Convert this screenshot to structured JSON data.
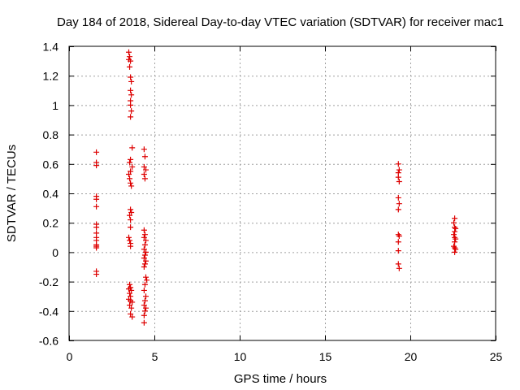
{
  "chart_data": {
    "type": "scatter",
    "title": "Day 184 of 2018, Sidereal Day-to-day VTEC variation (SDTVAR) for receiver mac1",
    "xlabel": "GPS time / hours",
    "ylabel": "SDTVAR / TECUs",
    "xlim": [
      0,
      25
    ],
    "ylim": [
      -0.6,
      1.4
    ],
    "xticks": [
      0,
      5,
      10,
      15,
      20,
      25
    ],
    "xtick_labels": [
      "0",
      "5",
      "10",
      "15",
      "20",
      "25"
    ],
    "yticks": [
      -0.6,
      -0.4,
      -0.2,
      0,
      0.2,
      0.4,
      0.6,
      0.8,
      1,
      1.2,
      1.4
    ],
    "ytick_labels": [
      "-0.6",
      "-0.4",
      "-0.2",
      "0",
      "0.2",
      "0.4",
      "0.6",
      "0.8",
      "1",
      "1.2",
      "1.4"
    ],
    "grid": true,
    "marker": "+",
    "marker_color": "#dd0000",
    "series": [
      {
        "name": "SDTVAR",
        "points": [
          [
            1.6,
            0.68
          ],
          [
            1.6,
            0.61
          ],
          [
            1.6,
            0.59
          ],
          [
            1.6,
            0.38
          ],
          [
            1.6,
            0.36
          ],
          [
            1.6,
            0.31
          ],
          [
            1.6,
            0.19
          ],
          [
            1.6,
            0.17
          ],
          [
            1.6,
            0.13
          ],
          [
            1.6,
            0.1
          ],
          [
            1.6,
            0.08
          ],
          [
            1.6,
            0.05
          ],
          [
            1.6,
            0.04
          ],
          [
            1.6,
            0.03
          ],
          [
            1.6,
            -0.13
          ],
          [
            1.6,
            -0.15
          ],
          [
            3.5,
            1.36
          ],
          [
            3.55,
            1.33
          ],
          [
            3.5,
            1.31
          ],
          [
            3.6,
            1.3
          ],
          [
            3.55,
            1.26
          ],
          [
            3.6,
            1.19
          ],
          [
            3.65,
            1.16
          ],
          [
            3.6,
            1.1
          ],
          [
            3.65,
            1.07
          ],
          [
            3.6,
            1.03
          ],
          [
            3.6,
            1.0
          ],
          [
            3.65,
            0.96
          ],
          [
            3.6,
            0.92
          ],
          [
            3.7,
            0.71
          ],
          [
            3.6,
            0.63
          ],
          [
            3.55,
            0.61
          ],
          [
            3.7,
            0.58
          ],
          [
            3.6,
            0.55
          ],
          [
            3.5,
            0.53
          ],
          [
            3.55,
            0.5
          ],
          [
            3.6,
            0.47
          ],
          [
            3.65,
            0.45
          ],
          [
            3.6,
            0.29
          ],
          [
            3.65,
            0.27
          ],
          [
            3.55,
            0.25
          ],
          [
            3.6,
            0.22
          ],
          [
            3.6,
            0.17
          ],
          [
            3.5,
            0.1
          ],
          [
            3.55,
            0.08
          ],
          [
            3.6,
            0.06
          ],
          [
            3.6,
            0.04
          ],
          [
            3.55,
            -0.22
          ],
          [
            3.6,
            -0.24
          ],
          [
            3.5,
            -0.25
          ],
          [
            3.65,
            -0.26
          ],
          [
            3.55,
            -0.28
          ],
          [
            3.6,
            -0.3
          ],
          [
            3.5,
            -0.32
          ],
          [
            3.6,
            -0.33
          ],
          [
            3.7,
            -0.34
          ],
          [
            3.55,
            -0.36
          ],
          [
            3.65,
            -0.38
          ],
          [
            3.6,
            -0.42
          ],
          [
            3.7,
            -0.44
          ],
          [
            4.4,
            0.7
          ],
          [
            4.45,
            0.65
          ],
          [
            4.4,
            0.58
          ],
          [
            4.5,
            0.56
          ],
          [
            4.4,
            0.53
          ],
          [
            4.45,
            0.5
          ],
          [
            4.4,
            0.15
          ],
          [
            4.45,
            0.12
          ],
          [
            4.4,
            0.1
          ],
          [
            4.5,
            0.08
          ],
          [
            4.45,
            0.05
          ],
          [
            4.4,
            0.02
          ],
          [
            4.5,
            0.0
          ],
          [
            4.45,
            -0.02
          ],
          [
            4.4,
            -0.04
          ],
          [
            4.5,
            -0.06
          ],
          [
            4.45,
            -0.08
          ],
          [
            4.4,
            -0.1
          ],
          [
            4.5,
            -0.17
          ],
          [
            4.55,
            -0.19
          ],
          [
            4.45,
            -0.22
          ],
          [
            4.4,
            -0.26
          ],
          [
            4.5,
            -0.3
          ],
          [
            4.45,
            -0.33
          ],
          [
            4.4,
            -0.36
          ],
          [
            4.5,
            -0.38
          ],
          [
            4.45,
            -0.4
          ],
          [
            4.4,
            -0.43
          ],
          [
            4.4,
            -0.48
          ],
          [
            19.3,
            0.6
          ],
          [
            19.35,
            0.56
          ],
          [
            19.3,
            0.54
          ],
          [
            19.3,
            0.51
          ],
          [
            19.35,
            0.48
          ],
          [
            19.3,
            0.37
          ],
          [
            19.35,
            0.33
          ],
          [
            19.3,
            0.29
          ],
          [
            19.3,
            0.12
          ],
          [
            19.35,
            0.11
          ],
          [
            19.3,
            0.07
          ],
          [
            19.3,
            0.01
          ],
          [
            19.3,
            -0.08
          ],
          [
            19.35,
            -0.11
          ],
          [
            22.6,
            0.23
          ],
          [
            22.55,
            0.2
          ],
          [
            22.6,
            0.17
          ],
          [
            22.65,
            0.16
          ],
          [
            22.6,
            0.14
          ],
          [
            22.55,
            0.12
          ],
          [
            22.6,
            0.1
          ],
          [
            22.65,
            0.09
          ],
          [
            22.6,
            0.07
          ],
          [
            22.55,
            0.04
          ],
          [
            22.6,
            0.03
          ],
          [
            22.65,
            0.02
          ],
          [
            22.6,
            0.0
          ]
        ]
      }
    ]
  }
}
